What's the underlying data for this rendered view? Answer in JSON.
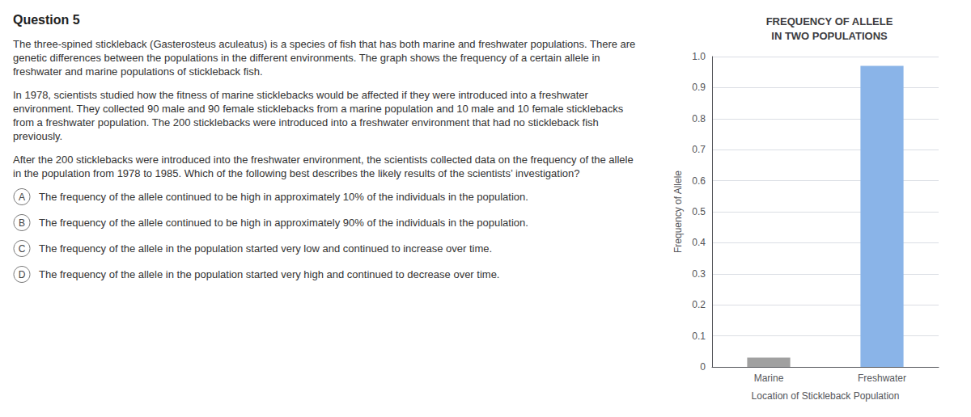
{
  "chart_data": {
    "type": "bar",
    "title": "FREQUENCY OF ALLELE\nIN TWO POPULATIONS",
    "categories": [
      "Marine",
      "Freshwater"
    ],
    "values": [
      0.03,
      0.97
    ],
    "colors": [
      "#a0a0a0",
      "#8ab4e8"
    ],
    "xlabel": "Location of Stickleback Population",
    "ylabel": "Frequency of Allele",
    "ylim": [
      0,
      1.0
    ],
    "yticks": [
      0,
      0.1,
      0.2,
      0.3,
      0.4,
      0.5,
      0.6,
      0.7,
      0.8,
      0.9,
      {
        "value": 1.0,
        "label": "1.0"
      }
    ],
    "grid": true,
    "annotations": [
      "Question 5",
      "The three-spined stickleback (Gasterosteus aculeatus) is a species of fish that has both marine and freshwater populations. There are genetic differences between the populations in the different environments. The graph shows the frequency of a certain allele in freshwater and marine populations of stickleback fish.",
      "In 1978, scientists studied how the fitness of marine sticklebacks would be affected if they were introduced into a freshwater environment. They collected 90 male and 90 female sticklebacks from a marine population and 10 male and 10 female sticklebacks from a freshwater population. The 200 sticklebacks were introduced into a freshwater environment that had no stickleback fish previously.",
      "After the 200 sticklebacks were introduced into the freshwater environment, the scientists collected data on the frequency of the allele in the population from 1978 to 1985. Which of the following best describes the likely results of the scientists’ investigation?",
      "A",
      "The frequency of the allele continued to be high in approximately 10% of the individuals in the population.",
      "B",
      "The frequency of the allele continued to be high in approximately 90% of the individuals in the population.",
      "C",
      "The frequency of the allele in the population started very low and continued to increase over time.",
      "D",
      "The frequency of the allele in the population started very high and continued to decrease over time."
    ]
  }
}
